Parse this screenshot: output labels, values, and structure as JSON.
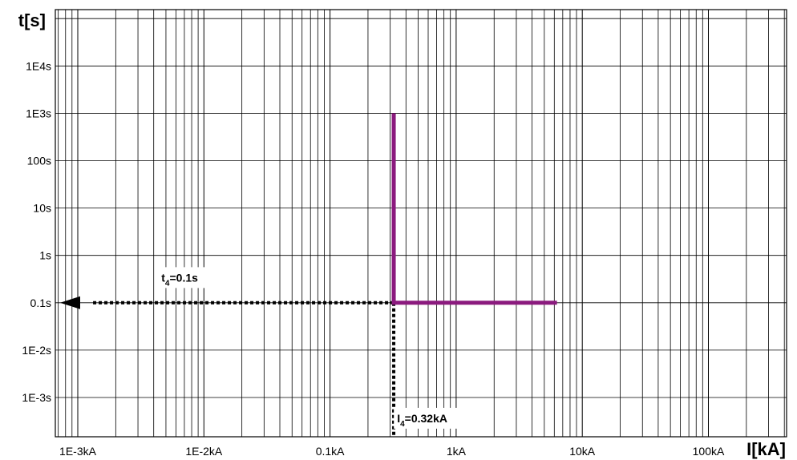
{
  "chart_data": {
    "type": "line",
    "scale": {
      "x": "log",
      "y": "log"
    },
    "xlabel": "I[kA]",
    "ylabel": "t[s]",
    "xlim": [
      0.001,
      100
    ],
    "ylim": [
      0.001,
      10000
    ],
    "grid": true,
    "x_ticks": [
      "1E-3kA",
      "1E-2kA",
      "0.1kA",
      "1kA",
      "10kA",
      "100kA"
    ],
    "y_ticks": [
      "1E4s",
      "1E3s",
      "100s",
      "10s",
      "1s",
      "0.1s",
      "1E-2s",
      "1E-3s"
    ],
    "series": [
      {
        "color": "#8b1a7e",
        "style": "solid",
        "points": [
          {
            "x": 0.32,
            "y": 1000
          },
          {
            "x": 0.32,
            "y": 0.1
          },
          {
            "x": 6.3,
            "y": 0.1
          }
        ]
      }
    ],
    "annotations": [
      {
        "main": "t",
        "sub": "4",
        "rest": "=0.1s",
        "x": 0.0046,
        "y": 0.28
      },
      {
        "main": "I",
        "sub": "4",
        "rest": "=0.32kA",
        "x": 0.34,
        "y": 0.0003
      }
    ],
    "guides": {
      "color": "#000000",
      "style": "dotted",
      "horizontal": {
        "y": 0.1,
        "from_x": 0.32,
        "to_x": 0.001,
        "arrow": true
      },
      "vertical": {
        "x": 0.32,
        "from_y": 0.1,
        "to_y": 0.00025
      }
    }
  }
}
